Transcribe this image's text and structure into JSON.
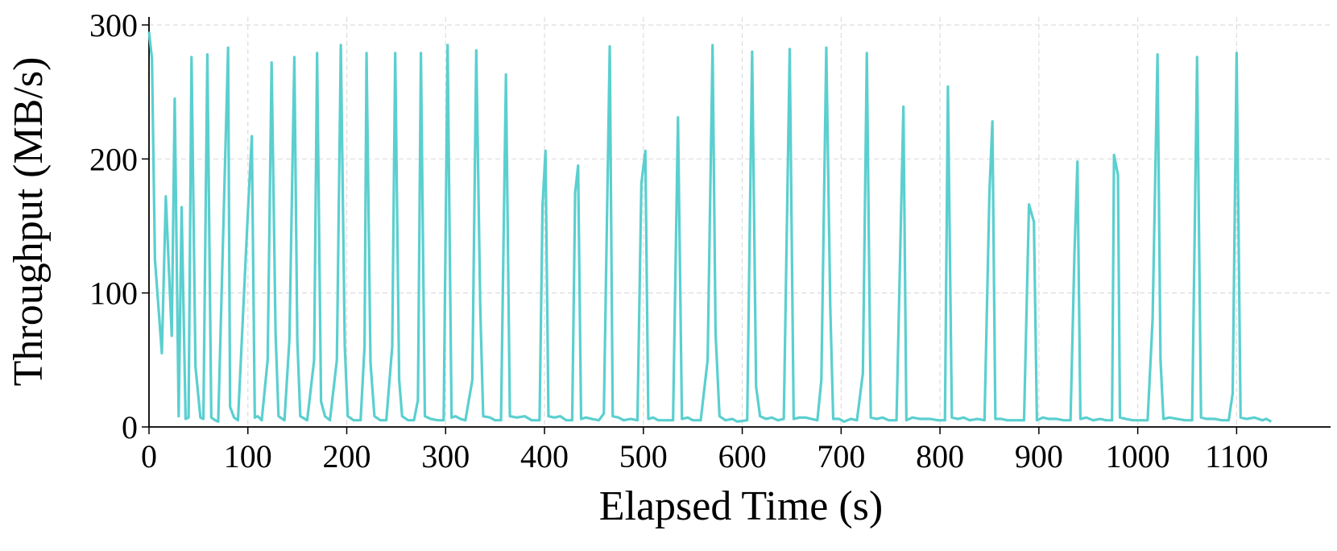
{
  "chart_data": {
    "type": "line",
    "x_label": "Elapsed Time (s)",
    "y_label": "Throughput (MB/s)",
    "xlim": [
      0,
      1195
    ],
    "ylim": [
      0,
      306
    ],
    "xticks": [
      0,
      100,
      200,
      300,
      400,
      500,
      600,
      700,
      800,
      900,
      1000,
      1100
    ],
    "yticks": [
      0,
      100,
      200,
      300
    ],
    "grid": true,
    "series": [
      {
        "color": "#5bcfcf",
        "x": [
          0,
          3,
          6,
          13,
          17,
          23,
          26,
          30,
          33,
          37,
          40,
          43,
          47,
          52,
          55,
          59,
          63,
          67,
          70,
          80,
          82,
          86,
          90,
          100,
          104,
          107,
          110,
          114,
          120,
          124,
          128,
          131,
          137,
          142,
          147,
          150,
          153,
          160,
          167,
          170,
          174,
          178,
          183,
          190,
          194,
          198,
          201,
          207,
          214,
          218,
          220,
          224,
          228,
          234,
          240,
          246,
          249,
          253,
          256,
          262,
          268,
          272,
          275,
          279,
          285,
          292,
          298,
          302,
          306,
          310,
          315,
          320,
          327,
          331,
          335,
          338,
          345,
          350,
          356,
          361,
          365,
          372,
          380,
          387,
          395,
          398,
          401,
          404,
          410,
          416,
          422,
          428,
          431,
          434,
          437,
          442,
          448,
          455,
          460,
          466,
          469,
          475,
          480,
          487,
          494,
          498,
          502,
          505,
          510,
          515,
          520,
          530,
          535,
          539,
          545,
          550,
          558,
          565,
          570,
          573,
          577,
          583,
          590,
          595,
          605,
          610,
          614,
          618,
          624,
          630,
          636,
          642,
          648,
          652,
          658,
          664,
          670,
          676,
          680,
          685,
          689,
          692,
          698,
          703,
          710,
          716,
          722,
          726,
          730,
          736,
          742,
          748,
          756,
          763,
          766,
          772,
          780,
          790,
          798,
          805,
          808,
          812,
          818,
          824,
          830,
          838,
          845,
          850,
          853,
          856,
          862,
          868,
          878,
          885,
          890,
          895,
          898,
          904,
          910,
          918,
          925,
          932,
          936,
          939,
          942,
          948,
          955,
          962,
          968,
          974,
          976,
          980,
          982,
          988,
          995,
          1002,
          1010,
          1015,
          1020,
          1023,
          1026,
          1032,
          1040,
          1048,
          1055,
          1060,
          1064,
          1070,
          1078,
          1085,
          1092,
          1096,
          1100,
          1104,
          1110,
          1118,
          1126,
          1130,
          1135
        ],
        "values": [
          295,
          275,
          125,
          55,
          172,
          68,
          245,
          8,
          164,
          6,
          7,
          276,
          45,
          7,
          6,
          278,
          7,
          5,
          4,
          283,
          15,
          7,
          5,
          160,
          217,
          7,
          8,
          5,
          50,
          272,
          70,
          8,
          5,
          65,
          276,
          65,
          8,
          5,
          50,
          279,
          19,
          8,
          5,
          50,
          285,
          60,
          8,
          5,
          5,
          60,
          279,
          48,
          8,
          5,
          5,
          60,
          279,
          35,
          8,
          5,
          5,
          20,
          279,
          8,
          6,
          5,
          5,
          285,
          7,
          8,
          6,
          5,
          35,
          281,
          90,
          8,
          7,
          5,
          5,
          263,
          8,
          7,
          8,
          5,
          5,
          165,
          206,
          8,
          7,
          8,
          5,
          5,
          175,
          195,
          6,
          7,
          6,
          5,
          10,
          284,
          8,
          7,
          5,
          6,
          5,
          182,
          206,
          6,
          7,
          5,
          5,
          5,
          231,
          6,
          7,
          5,
          5,
          50,
          285,
          70,
          8,
          5,
          6,
          4,
          5,
          280,
          30,
          8,
          6,
          7,
          5,
          6,
          282,
          6,
          7,
          7,
          6,
          5,
          35,
          283,
          90,
          6,
          6,
          4,
          6,
          5,
          40,
          279,
          7,
          6,
          7,
          5,
          5,
          239,
          5,
          7,
          6,
          6,
          5,
          5,
          254,
          7,
          6,
          7,
          5,
          6,
          5,
          175,
          228,
          6,
          6,
          5,
          5,
          5,
          166,
          153,
          5,
          7,
          6,
          6,
          5,
          5,
          130,
          198,
          6,
          7,
          5,
          6,
          5,
          5,
          203,
          188,
          7,
          6,
          5,
          5,
          5,
          80,
          278,
          50,
          6,
          7,
          6,
          5,
          5,
          276,
          7,
          6,
          6,
          5,
          5,
          25,
          279,
          7,
          6,
          7,
          5,
          6,
          4
        ]
      }
    ]
  }
}
